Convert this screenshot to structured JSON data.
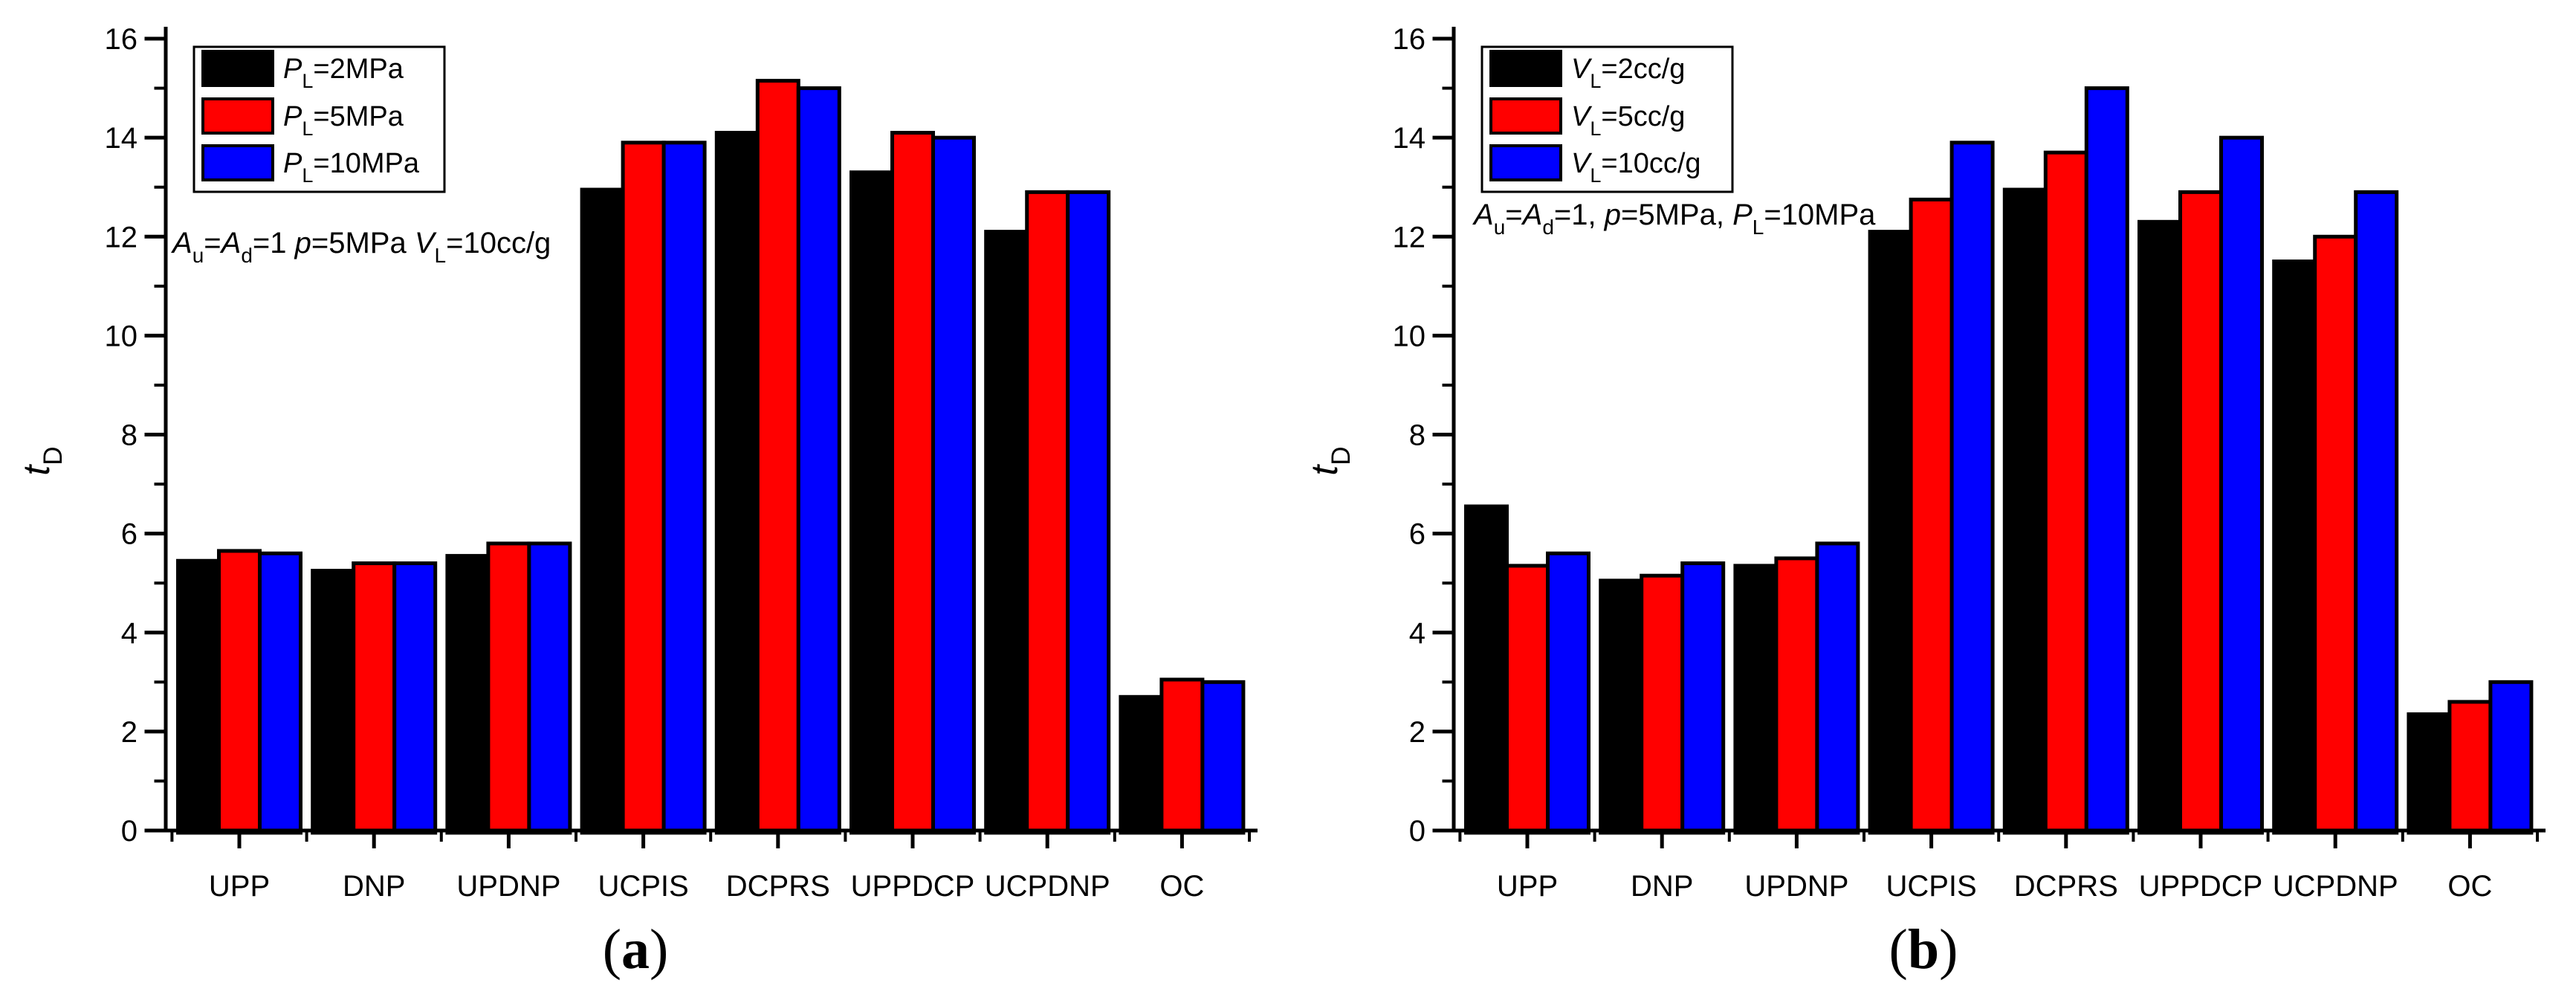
{
  "figure": {
    "background": "#ffffff",
    "panel_count": 2
  },
  "chart_data": [
    {
      "type": "bar",
      "panel": "a",
      "caption": "(a)",
      "caption_segments": [
        {
          "t": "("
        },
        {
          "t": "a",
          "bold": true
        },
        {
          "t": ")"
        }
      ],
      "ylabel": "tD",
      "ylabel_segments": [
        {
          "t": "t",
          "italic": true
        },
        {
          "t": "D",
          "sub": true
        }
      ],
      "ylim": [
        0,
        16
      ],
      "yticks": [
        0,
        2,
        4,
        6,
        8,
        10,
        12,
        14,
        16
      ],
      "yminor_step": 1,
      "grid": false,
      "legend_position": "top-left",
      "annotation": "Au=Ad=1 p=5MPa VL=10cc/g",
      "annotation_segments": [
        {
          "t": "A",
          "italic": true
        },
        {
          "t": "u",
          "sub": true
        },
        {
          "t": "="
        },
        {
          "t": "A",
          "italic": true
        },
        {
          "t": "d",
          "sub": true
        },
        {
          "t": "=1 "
        },
        {
          "t": "p",
          "italic": true
        },
        {
          "t": "=5MPa "
        },
        {
          "t": "V",
          "italic": true
        },
        {
          "t": "L",
          "sub": true
        },
        {
          "t": "=10cc/g"
        }
      ],
      "categories": [
        "UPP",
        "DNP",
        "UPDNP",
        "UCPIS",
        "DCPRS",
        "UPPDCP",
        "UCPDNP",
        "OC"
      ],
      "series": [
        {
          "name": "PL=2MPa",
          "label_segments": [
            {
              "t": "P",
              "italic": true
            },
            {
              "t": "L",
              "sub": true
            },
            {
              "t": "=2MPa"
            }
          ],
          "color": "#000000",
          "values": [
            5.45,
            5.25,
            5.55,
            12.95,
            14.1,
            13.3,
            12.1,
            2.7
          ]
        },
        {
          "name": "PL=5MPa",
          "label_segments": [
            {
              "t": "P",
              "italic": true
            },
            {
              "t": "L",
              "sub": true
            },
            {
              "t": "=5MPa"
            }
          ],
          "color": "#ff0000",
          "values": [
            5.65,
            5.4,
            5.8,
            13.9,
            15.15,
            14.1,
            12.9,
            3.05
          ]
        },
        {
          "name": "PL=10MPa",
          "label_segments": [
            {
              "t": "P",
              "italic": true
            },
            {
              "t": "L",
              "sub": true
            },
            {
              "t": "=10MPa"
            }
          ],
          "color": "#0000ff",
          "values": [
            5.6,
            5.4,
            5.8,
            13.9,
            15.0,
            14.0,
            12.9,
            3.0
          ]
        }
      ],
      "annotation_x": 232,
      "annotation_baseline": 340
    },
    {
      "type": "bar",
      "panel": "b",
      "caption": "(b)",
      "caption_segments": [
        {
          "t": "("
        },
        {
          "t": "b",
          "bold": true
        },
        {
          "t": ")"
        }
      ],
      "ylabel": "tD",
      "ylabel_segments": [
        {
          "t": "t",
          "italic": true
        },
        {
          "t": "D",
          "sub": true
        }
      ],
      "ylim": [
        0,
        16
      ],
      "yticks": [
        0,
        2,
        4,
        6,
        8,
        10,
        12,
        14,
        16
      ],
      "yminor_step": 1,
      "grid": false,
      "legend_position": "top-left",
      "annotation": "Au=Ad=1, p=5MPa, PL=10MPa",
      "annotation_segments": [
        {
          "t": "A",
          "italic": true
        },
        {
          "t": "u",
          "sub": true
        },
        {
          "t": "="
        },
        {
          "t": "A",
          "italic": true
        },
        {
          "t": "d",
          "sub": true
        },
        {
          "t": "=1, "
        },
        {
          "t": "p",
          "italic": true
        },
        {
          "t": "=5MPa, "
        },
        {
          "t": "P",
          "italic": true
        },
        {
          "t": "L",
          "sub": true
        },
        {
          "t": "=10MPa"
        }
      ],
      "categories": [
        "UPP",
        "DNP",
        "UPDNP",
        "UCPIS",
        "DCPRS",
        "UPPDCP",
        "UCPDNP",
        "OC"
      ],
      "series": [
        {
          "name": "VL=2cc/g",
          "label_segments": [
            {
              "t": "V",
              "italic": true
            },
            {
              "t": "L",
              "sub": true
            },
            {
              "t": "=2cc/g"
            }
          ],
          "color": "#000000",
          "values": [
            6.55,
            5.05,
            5.35,
            12.1,
            12.95,
            12.3,
            11.5,
            2.35
          ]
        },
        {
          "name": "VL=5cc/g",
          "label_segments": [
            {
              "t": "V",
              "italic": true
            },
            {
              "t": "L",
              "sub": true
            },
            {
              "t": "=5cc/g"
            }
          ],
          "color": "#ff0000",
          "values": [
            5.35,
            5.15,
            5.5,
            12.75,
            13.7,
            12.9,
            12.0,
            2.6
          ]
        },
        {
          "name": "VL=10cc/g",
          "label_segments": [
            {
              "t": "V",
              "italic": true
            },
            {
              "t": "L",
              "sub": true
            },
            {
              "t": "=10cc/g"
            }
          ],
          "color": "#0000ff",
          "values": [
            5.6,
            5.4,
            5.8,
            13.9,
            15.0,
            14.0,
            12.9,
            3.0
          ]
        }
      ],
      "annotation_x": 250,
      "annotation_baseline": 302
    }
  ]
}
